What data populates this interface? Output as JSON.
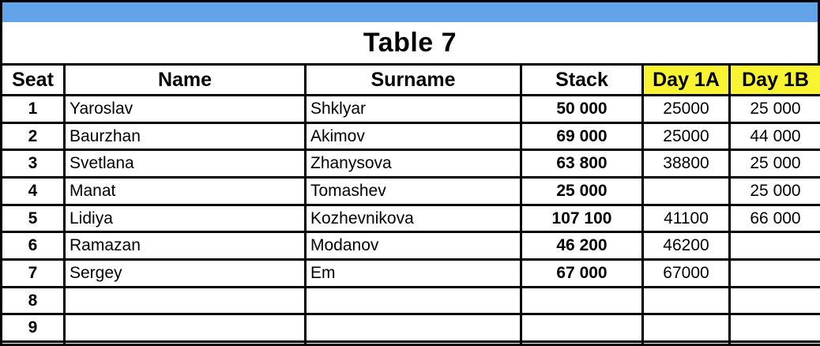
{
  "title": "Table 7",
  "theme": {
    "accent_blue": "#63A3EA",
    "highlight_yellow": "#F8F431",
    "grid_black": "#000000",
    "background_white": "#FFFFFF"
  },
  "table": {
    "columns": [
      {
        "key": "seat",
        "label": "Seat",
        "highlight": false
      },
      {
        "key": "name",
        "label": "Name",
        "highlight": false
      },
      {
        "key": "surname",
        "label": "Surname",
        "highlight": false
      },
      {
        "key": "stack",
        "label": "Stack",
        "highlight": false
      },
      {
        "key": "day1a",
        "label": "Day 1A",
        "highlight": true
      },
      {
        "key": "day1b",
        "label": "Day 1B",
        "highlight": true
      }
    ],
    "rows": [
      {
        "seat": "1",
        "name": "Yaroslav",
        "surname": "Shklyar",
        "stack": "50 000",
        "day1a": "25000",
        "day1b": "25 000"
      },
      {
        "seat": "2",
        "name": "Baurzhan",
        "surname": "Akimov",
        "stack": "69 000",
        "day1a": "25000",
        "day1b": "44 000"
      },
      {
        "seat": "3",
        "name": "Svetlana",
        "surname": "Zhanysova",
        "stack": "63 800",
        "day1a": "38800",
        "day1b": "25 000"
      },
      {
        "seat": "4",
        "name": "Manat",
        "surname": "Tomashev",
        "stack": "25 000",
        "day1a": "",
        "day1b": "25 000"
      },
      {
        "seat": "5",
        "name": "Lidiya",
        "surname": "Kozhevnikova",
        "stack": "107 100",
        "day1a": "41100",
        "day1b": "66 000"
      },
      {
        "seat": "6",
        "name": "Ramazan",
        "surname": "Modanov",
        "stack": "46 200",
        "day1a": "46200",
        "day1b": ""
      },
      {
        "seat": "7",
        "name": "Sergey",
        "surname": "Em",
        "stack": "67 000",
        "day1a": "67000",
        "day1b": ""
      },
      {
        "seat": "8",
        "name": "",
        "surname": "",
        "stack": "",
        "day1a": "",
        "day1b": ""
      },
      {
        "seat": "9",
        "name": "",
        "surname": "",
        "stack": "",
        "day1a": "",
        "day1b": ""
      },
      {
        "seat": "",
        "name": "",
        "surname": "",
        "stack": "",
        "day1a": "",
        "day1b": ""
      }
    ]
  }
}
